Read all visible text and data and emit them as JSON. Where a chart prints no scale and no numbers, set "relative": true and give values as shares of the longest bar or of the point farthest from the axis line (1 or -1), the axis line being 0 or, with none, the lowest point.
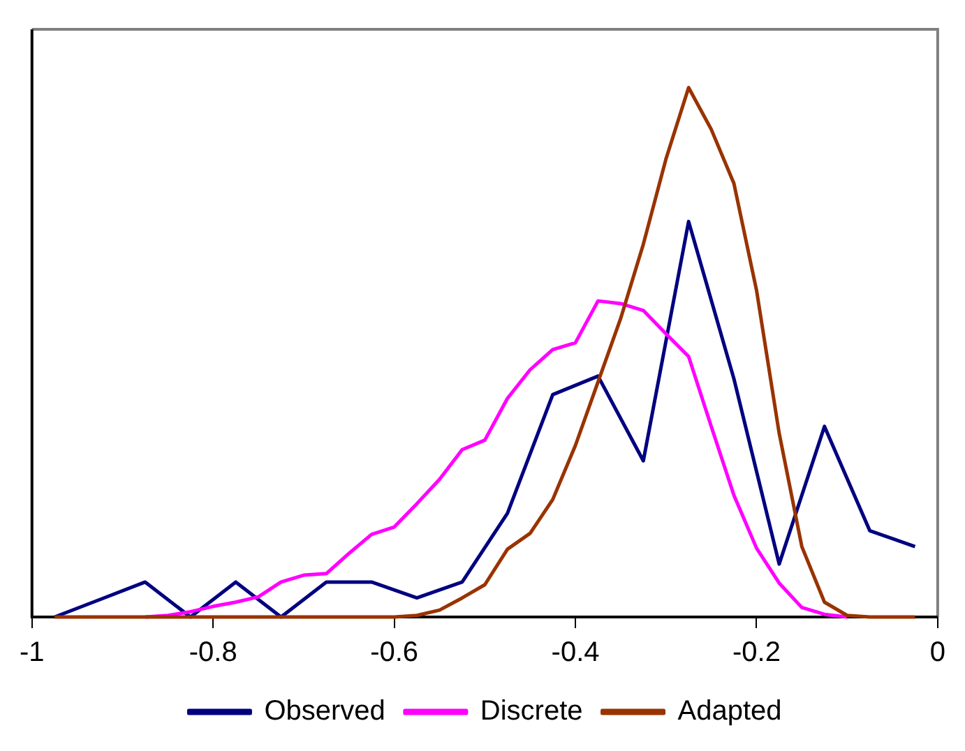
{
  "chart_data": {
    "type": "line",
    "relative": true,
    "xlim": [
      -1,
      0
    ],
    "xticks": [
      -1,
      -0.8,
      -0.6,
      -0.4,
      -0.2,
      0
    ],
    "grid": false,
    "legend": "bottom",
    "marker": "none",
    "line_style": "solid",
    "series": [
      {
        "name": "Observed",
        "color": "#000080",
        "x": [
          -0.975,
          -0.925,
          -0.875,
          -0.825,
          -0.775,
          -0.725,
          -0.675,
          -0.625,
          -0.575,
          -0.525,
          -0.475,
          -0.425,
          -0.375,
          -0.325,
          -0.275,
          -0.225,
          -0.175,
          -0.125,
          -0.075,
          -0.025
        ],
        "values": [
          0,
          0.033,
          0.066,
          0,
          0.066,
          0,
          0.066,
          0.066,
          0.036,
          0.066,
          0.196,
          0.42,
          0.455,
          0.295,
          0.747,
          0.45,
          0.1,
          0.36,
          0.163,
          0.133
        ]
      },
      {
        "name": "Discrete",
        "color": "#ff00ff",
        "x": [
          -0.875,
          -0.85,
          -0.825,
          -0.8,
          -0.775,
          -0.75,
          -0.725,
          -0.7,
          -0.675,
          -0.65,
          -0.625,
          -0.6,
          -0.575,
          -0.55,
          -0.525,
          -0.5,
          -0.475,
          -0.45,
          -0.425,
          -0.4,
          -0.375,
          -0.35,
          -0.325,
          -0.3,
          -0.275,
          -0.25,
          -0.225,
          -0.2,
          -0.175,
          -0.15,
          -0.125,
          -0.1
        ],
        "values": [
          0,
          0.003,
          0.01,
          0.02,
          0.028,
          0.038,
          0.066,
          0.079,
          0.082,
          0.12,
          0.156,
          0.17,
          0.214,
          0.26,
          0.316,
          0.334,
          0.413,
          0.467,
          0.505,
          0.518,
          0.597,
          0.592,
          0.579,
          0.535,
          0.492,
          0.36,
          0.23,
          0.13,
          0.064,
          0.018,
          0.005,
          0
        ]
      },
      {
        "name": "Adapted",
        "color": "#993300",
        "x": [
          -0.975,
          -0.95,
          -0.925,
          -0.9,
          -0.875,
          -0.85,
          -0.825,
          -0.8,
          -0.775,
          -0.75,
          -0.725,
          -0.7,
          -0.675,
          -0.65,
          -0.625,
          -0.6,
          -0.575,
          -0.55,
          -0.525,
          -0.5,
          -0.475,
          -0.45,
          -0.425,
          -0.4,
          -0.375,
          -0.35,
          -0.325,
          -0.3,
          -0.275,
          -0.25,
          -0.225,
          -0.2,
          -0.175,
          -0.15,
          -0.125,
          -0.1,
          -0.075,
          -0.05,
          -0.025
        ],
        "values": [
          0,
          0,
          0,
          0,
          0,
          0,
          0,
          0,
          0,
          0,
          0,
          0,
          0,
          0,
          0,
          0,
          0.003,
          0.013,
          0.036,
          0.061,
          0.128,
          0.158,
          0.222,
          0.324,
          0.444,
          0.564,
          0.704,
          0.865,
          1,
          0.921,
          0.819,
          0.617,
          0.347,
          0.133,
          0.028,
          0.003,
          0,
          0,
          0
        ]
      }
    ]
  }
}
